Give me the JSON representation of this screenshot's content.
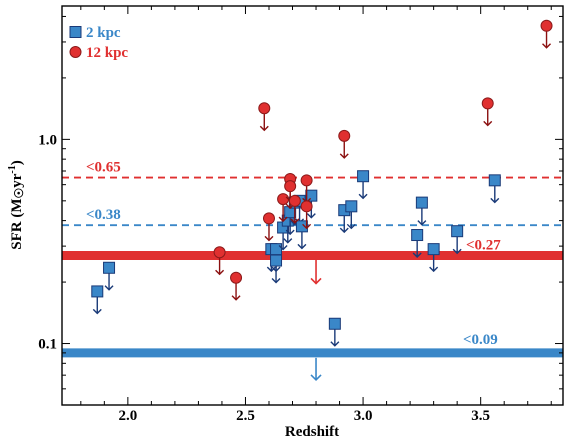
{
  "chart_data": {
    "type": "scatter",
    "xlabel": "Redshift",
    "ylabel": "SFR (M☉yr⁻¹)",
    "ylabel_main": "SFR (M",
    "ylabel_sun": "☉",
    "ylabel_unit": "yr",
    "ylabel_exp": "-1",
    "ylabel_close": ")",
    "xlim": [
      1.72,
      3.85
    ],
    "ylim": [
      0.05,
      4.5
    ],
    "y_scale": "log",
    "grid": false,
    "legend_position": "top-left",
    "x_ticks": [
      2.0,
      2.5,
      3.0,
      3.5
    ],
    "x_tick_labels": [
      "2.0",
      "2.5",
      "3.0",
      "3.5"
    ],
    "y_ticks": [
      0.1,
      1.0
    ],
    "y_tick_labels": [
      "0.1",
      "1.0"
    ],
    "colors": {
      "blue": "#3a87c8",
      "blue_dark": "#1a3a78",
      "red": "#e03030",
      "red_dark": "#8b1010"
    },
    "series": [
      {
        "name": "2 kpc",
        "marker": "square",
        "color": "#3a87c8",
        "upper_limit": true,
        "points": [
          {
            "x": 1.87,
            "y": 0.18
          },
          {
            "x": 1.92,
            "y": 0.235
          },
          {
            "x": 2.61,
            "y": 0.29
          },
          {
            "x": 2.63,
            "y": 0.29
          },
          {
            "x": 2.63,
            "y": 0.255
          },
          {
            "x": 2.66,
            "y": 0.37
          },
          {
            "x": 2.68,
            "y": 0.4
          },
          {
            "x": 2.69,
            "y": 0.44
          },
          {
            "x": 2.71,
            "y": 0.49
          },
          {
            "x": 2.73,
            "y": 0.5
          },
          {
            "x": 2.74,
            "y": 0.375
          },
          {
            "x": 2.78,
            "y": 0.53
          },
          {
            "x": 2.88,
            "y": 0.125
          },
          {
            "x": 2.92,
            "y": 0.45
          },
          {
            "x": 2.95,
            "y": 0.47
          },
          {
            "x": 3.0,
            "y": 0.66
          },
          {
            "x": 3.23,
            "y": 0.34
          },
          {
            "x": 3.25,
            "y": 0.49
          },
          {
            "x": 3.3,
            "y": 0.29
          },
          {
            "x": 3.4,
            "y": 0.355
          },
          {
            "x": 3.56,
            "y": 0.63
          }
        ]
      },
      {
        "name": "12 kpc",
        "marker": "circle",
        "color": "#e03030",
        "upper_limit": true,
        "points": [
          {
            "x": 2.39,
            "y": 0.28
          },
          {
            "x": 2.46,
            "y": 0.21
          },
          {
            "x": 2.58,
            "y": 1.42
          },
          {
            "x": 2.6,
            "y": 0.41
          },
          {
            "x": 2.66,
            "y": 0.51
          },
          {
            "x": 2.69,
            "y": 0.64
          },
          {
            "x": 2.69,
            "y": 0.59
          },
          {
            "x": 2.71,
            "y": 0.5
          },
          {
            "x": 2.76,
            "y": 0.63
          },
          {
            "x": 2.76,
            "y": 0.47
          },
          {
            "x": 2.92,
            "y": 1.04
          },
          {
            "x": 3.53,
            "y": 1.5
          },
          {
            "x": 3.78,
            "y": 3.6
          }
        ]
      }
    ],
    "reference_lines": [
      {
        "y": 0.65,
        "label": "<0.65",
        "style": "dashed",
        "color": "#e03030"
      },
      {
        "y": 0.38,
        "label": "<0.38",
        "style": "dashed",
        "color": "#3a87c8"
      },
      {
        "y": 0.27,
        "label": "<0.27",
        "style": "solid-thick",
        "color": "#e03030"
      },
      {
        "y": 0.09,
        "label": "<0.09",
        "style": "solid-thick",
        "color": "#3a87c8"
      }
    ]
  }
}
